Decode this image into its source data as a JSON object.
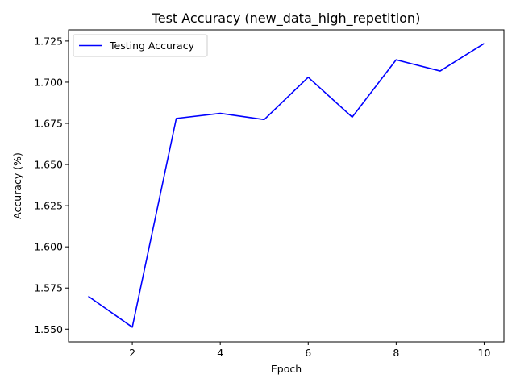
{
  "chart_data": {
    "type": "line",
    "title": "Test Accuracy (new_data_high_repetition)",
    "xlabel": "Epoch",
    "ylabel": "Accuracy (%)",
    "xlim": [
      0.55,
      10.45
    ],
    "ylim": [
      1.5423,
      1.7318
    ],
    "x_ticks": [
      2,
      4,
      6,
      8,
      10
    ],
    "y_ticks": [
      1.55,
      1.575,
      1.6,
      1.625,
      1.65,
      1.675,
      1.7,
      1.725
    ],
    "grid": false,
    "legend": {
      "placement": "upper-left"
    },
    "x": [
      1,
      2,
      3,
      4,
      5,
      6,
      7,
      8,
      9,
      10
    ],
    "series": [
      {
        "name": "Testing Accuracy",
        "color": "#0000ff",
        "values": [
          1.57,
          1.5512,
          1.678,
          1.6811,
          1.6773,
          1.703,
          1.6788,
          1.7136,
          1.7068,
          1.7235
        ]
      }
    ]
  }
}
